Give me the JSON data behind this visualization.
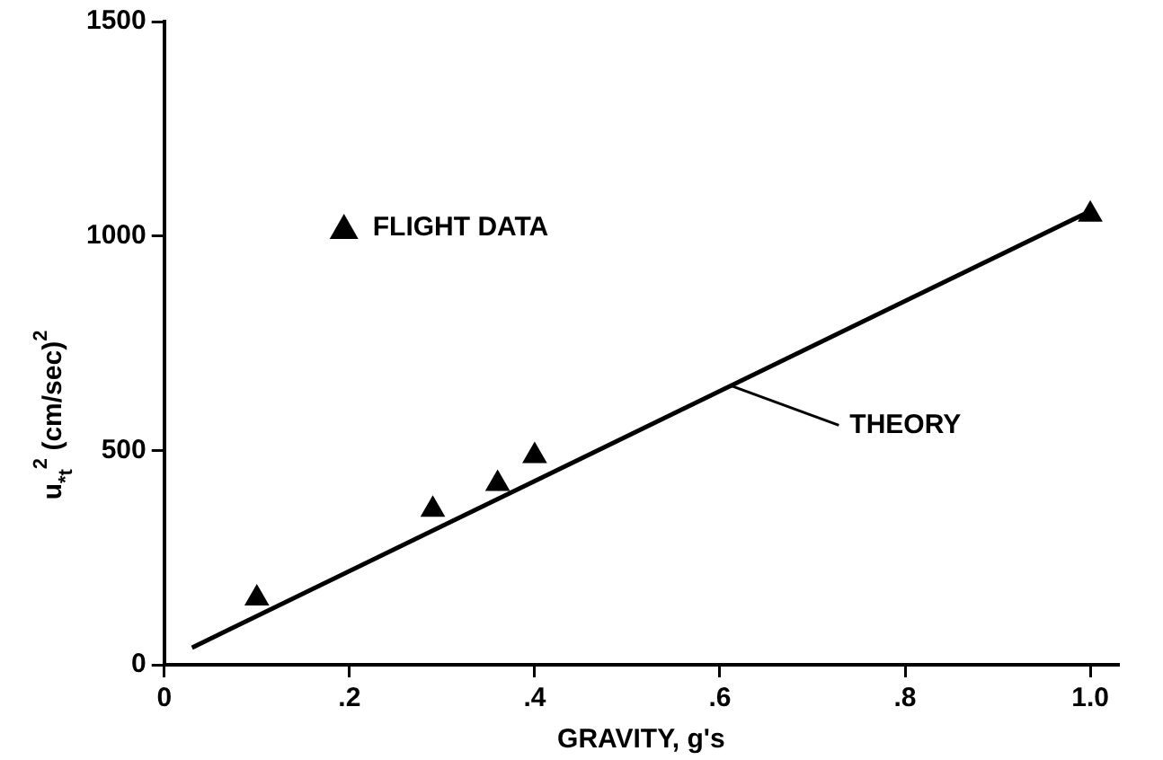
{
  "chart_data": {
    "type": "scatter",
    "xlabel": "GRAVITY, g's",
    "ylabel": "u$_{*t}$$^{2}$ (cm/sec)$^{2}$",
    "series": [
      {
        "name": "FLIGHT DATA",
        "color": "#000000",
        "marker": "triangle",
        "x": [
          0.1,
          0.29,
          0.36,
          0.4,
          1.0
        ],
        "values": [
          155,
          362,
          422,
          487,
          1050
        ]
      },
      {
        "name": "THEORY",
        "type": "line",
        "color": "#000000",
        "marker": "none",
        "x": [
          0.03,
          1.0
        ],
        "values": [
          40,
          1058
        ]
      }
    ],
    "xlim": [
      0,
      1.03
    ],
    "xticks": [
      0,
      {
        "value": 0.2,
        "label": ".2"
      },
      {
        "value": 0.4,
        "label": ".4"
      },
      {
        "value": 0.6,
        "label": ".6"
      },
      {
        "value": 0.8,
        "label": ".8"
      },
      {
        "value": 1.0,
        "label": "1.0"
      }
    ],
    "ylim": [
      0,
      1500
    ],
    "yticks": [
      0,
      500,
      1000,
      1500
    ],
    "grid": false,
    "legend": "top left"
  }
}
